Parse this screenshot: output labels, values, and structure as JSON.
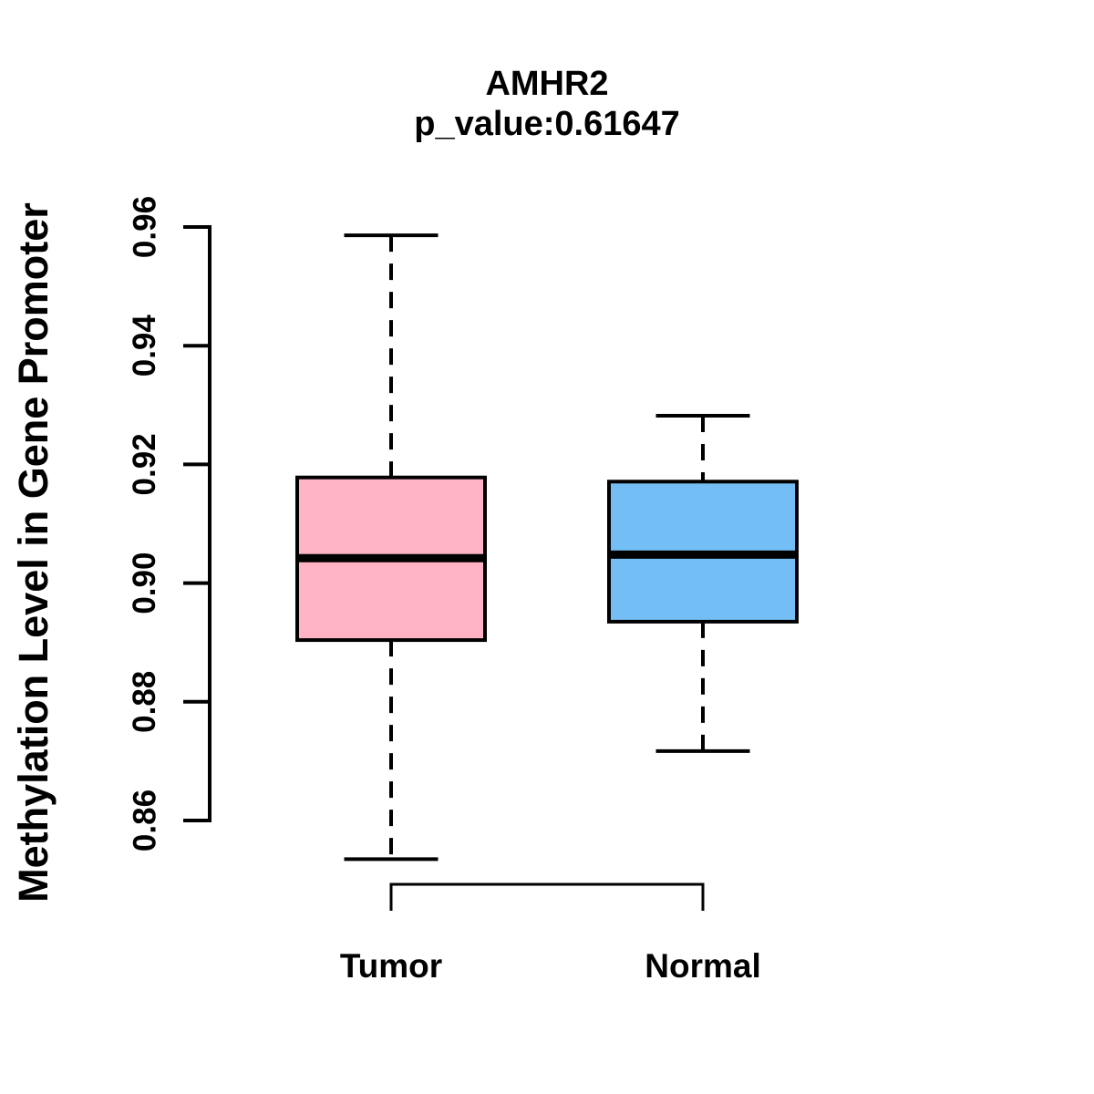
{
  "chart_data": {
    "type": "boxplot",
    "title": "AMHR2",
    "subtitle": "p_value:0.61647",
    "ylabel": "Methylation Level in Gene Promoter",
    "xlabel": "",
    "categories": [
      "Tumor",
      "Normal"
    ],
    "y_axis": {
      "min": 0.86,
      "max": 0.96,
      "ticks": [
        0.96,
        0.94,
        0.92,
        0.9,
        0.88,
        0.86
      ],
      "tick_labels": [
        "0.96",
        "0.94",
        "0.92",
        "0.90",
        "0.88",
        "0.86"
      ]
    },
    "series": [
      {
        "name": "Tumor",
        "color": "#FFB3C4",
        "whisker_low": 0.8535,
        "q1": 0.8904,
        "median": 0.9042,
        "q3": 0.9178,
        "whisker_high": 0.9586
      },
      {
        "name": "Normal",
        "color": "#73BEF5",
        "whisker_low": 0.8717,
        "q1": 0.8935,
        "median": 0.9048,
        "q3": 0.9171,
        "whisker_high": 0.9282
      }
    ],
    "style": {
      "box_border_color": "#000000",
      "median_color": "#000000",
      "axis_color": "#000000",
      "background_color": "#FFFFFF",
      "whisker_style": "dashed"
    },
    "legend": "none",
    "grid": false
  }
}
